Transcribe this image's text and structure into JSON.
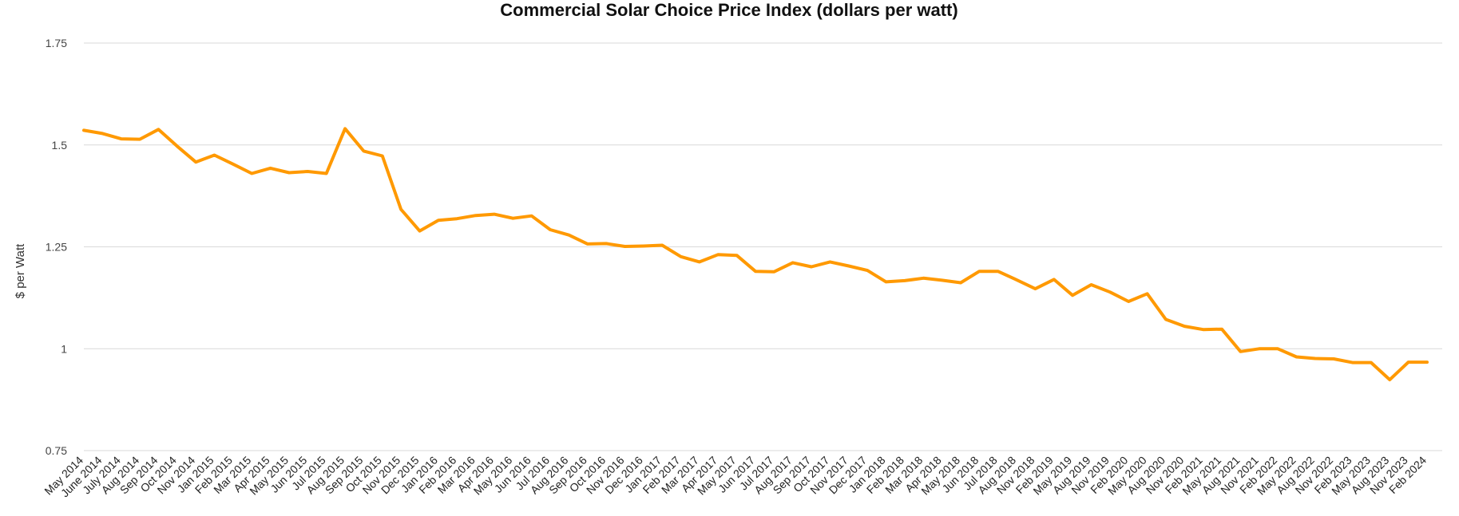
{
  "chart_data": {
    "type": "line",
    "title": "Commercial Solar Choice Price Index (dollars per watt)",
    "xlabel": "",
    "ylabel": "$ per Watt",
    "ylim": [
      0.75,
      1.75
    ],
    "yticks": [
      "0.75",
      "1",
      "1.25",
      "1.5",
      "1.75"
    ],
    "grid": true,
    "line_color": "#ff9900",
    "x": [
      "May 2014",
      "June 2014",
      "July 2014",
      "Aug 2014",
      "Sep 2014",
      "Oct 2014",
      "Nov 2014",
      "Jan 2015",
      "Feb 2015",
      "Mar 2015",
      "Apr 2015",
      "May 2015",
      "Jun 2015",
      "Jul 2015",
      "Aug 2015",
      "Sep 2015",
      "Oct 2015",
      "Nov 2015",
      "Dec 2015",
      "Jan 2016",
      "Feb 2016",
      "Mar 2016",
      "Apr 2016",
      "May 2016",
      "Jun 2016",
      "Jul 2016",
      "Aug 2016",
      "Sep 2016",
      "Oct 2016",
      "Nov 2016",
      "Dec 2016",
      "Jan 2017",
      "Feb 2017",
      "Mar 2017",
      "Apr 2017",
      "May 2017",
      "Jun 2017",
      "Jul 2017",
      "Aug 2017",
      "Sep 2017",
      "Oct 2017",
      "Nov 2017",
      "Dec 2017",
      "Jan 2018",
      "Feb 2018",
      "Mar 2018",
      "Apr 2018",
      "May 2018",
      "Jun 2018",
      "Jul 2018",
      "Aug 2018",
      "Nov 2018",
      "Feb 2019",
      "May 2019",
      "Aug 2019",
      "Nov 2019",
      "Feb 2020",
      "May 2020",
      "Aug 2020",
      "Nov 2020",
      "Feb 2021",
      "May 2021",
      "Aug 2021",
      "Nov 2021",
      "Feb 2022",
      "May 2022",
      "Aug 2022",
      "Nov 2022",
      "Feb 2023",
      "May 2023",
      "Aug 2023",
      "Nov 2023",
      "Feb 2024"
    ],
    "series": [
      {
        "values": [
          1.536,
          1.528,
          1.515,
          1.514,
          1.538,
          1.497,
          1.458,
          1.475,
          1.453,
          1.43,
          1.443,
          1.432,
          1.435,
          1.43,
          1.54,
          1.485,
          1.473,
          1.342,
          1.289,
          1.315,
          1.319,
          1.327,
          1.33,
          1.32,
          1.326,
          1.292,
          1.279,
          1.257,
          1.258,
          1.251,
          1.252,
          1.254,
          1.226,
          1.213,
          1.231,
          1.229,
          1.19,
          1.189,
          1.211,
          1.201,
          1.213,
          1.203,
          1.192,
          1.164,
          1.167,
          1.173,
          1.168,
          1.162,
          1.19,
          1.19,
          1.169,
          1.147,
          1.17,
          1.131,
          1.157,
          1.139,
          1.116,
          1.135,
          1.072,
          1.055,
          1.047,
          1.048,
          0.993,
          1.0,
          1.0,
          0.98,
          0.976,
          0.975,
          0.966,
          0.966,
          0.924,
          0.967,
          0.967
        ]
      }
    ]
  }
}
